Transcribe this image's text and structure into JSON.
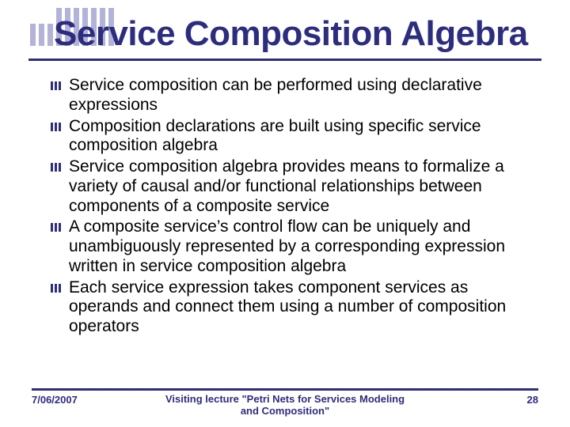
{
  "colors": {
    "accent": "#2d2d80",
    "stripe": "#b3b3d9",
    "text": "#000000",
    "background": "#ffffff"
  },
  "typography": {
    "title_fontsize": 44,
    "body_fontsize": 21,
    "footer_fontsize": 13
  },
  "title": "Service Composition Algebra",
  "bullets": [
    "Service composition can be performed using declarative expressions",
    "Composition declarations are built using specific service composition algebra",
    "Service composition algebra provides means to formalize a variety of causal and/or functional relationships between components of a composite service",
    "A composite service’s control flow can be uniquely and unambiguously represented by a corresponding expression written in service composition algebra",
    "Each service expression takes component services as operands and connect them using a number of composition operators"
  ],
  "footer": {
    "date": "7/06/2007",
    "center": "Visiting lecture \"Petri Nets for Services Modeling and Composition\"",
    "page": "28"
  },
  "decoration": {
    "top_stripe_count": 10,
    "stripe_width": 7,
    "bullet_bar_count": 3
  }
}
